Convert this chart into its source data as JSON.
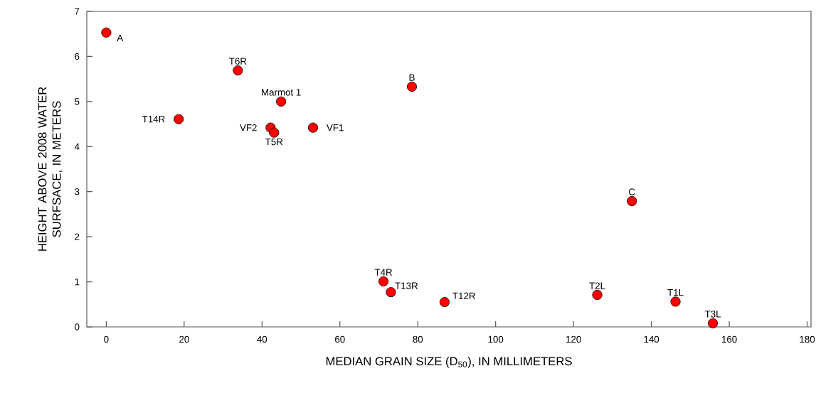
{
  "chart_data": {
    "type": "scatter",
    "xlabel": "MEDIAN GRAIN SIZE (D$_{50}$), IN MILLIMETERS",
    "ylabel": "HEIGHT ABOVE 2008 WATER SURFSACE, IN METERS",
    "xlim": [
      -5,
      181
    ],
    "ylim": [
      0,
      7
    ],
    "xticks": [
      0,
      20,
      40,
      60,
      80,
      100,
      120,
      140,
      160,
      180
    ],
    "yticks": [
      0,
      1,
      2,
      3,
      4,
      5,
      6,
      7
    ],
    "grid": false,
    "marker": "circle",
    "series": [
      {
        "color": "#ff0000",
        "x": [
          0,
          33.8,
          44.9,
          18.6,
          42.2,
          43.1,
          53.1,
          78.5,
          135.0,
          71.2,
          73.1,
          86.9,
          126.1,
          146.2,
          155.8
        ],
        "values": [
          6.53,
          5.69,
          5.0,
          4.61,
          4.42,
          4.31,
          4.42,
          5.33,
          2.79,
          1.01,
          0.77,
          0.55,
          0.71,
          0.56,
          0.08
        ]
      }
    ],
    "annotations": [
      {
        "text": "A",
        "x": 0,
        "y": 6.53
      },
      {
        "text": "T6R",
        "x": 33.8,
        "y": 5.69
      },
      {
        "text": "Marmot 1",
        "x": 44.9,
        "y": 5.0
      },
      {
        "text": "T14R",
        "x": 18.6,
        "y": 4.61
      },
      {
        "text": "VF2",
        "x": 42.2,
        "y": 4.42
      },
      {
        "text": "T5R",
        "x": 43.1,
        "y": 4.31
      },
      {
        "text": "VF1",
        "x": 53.1,
        "y": 4.42
      },
      {
        "text": "B",
        "x": 78.5,
        "y": 5.33
      },
      {
        "text": "C",
        "x": 135.0,
        "y": 2.79
      },
      {
        "text": "T4R",
        "x": 71.2,
        "y": 1.01
      },
      {
        "text": "T13R",
        "x": 73.1,
        "y": 0.77
      },
      {
        "text": "T12R",
        "x": 86.9,
        "y": 0.55
      },
      {
        "text": "T2L",
        "x": 126.1,
        "y": 0.71
      },
      {
        "text": "T1L",
        "x": 146.2,
        "y": 0.56
      },
      {
        "text": "T3L",
        "x": 155.8,
        "y": 0.08
      }
    ]
  }
}
